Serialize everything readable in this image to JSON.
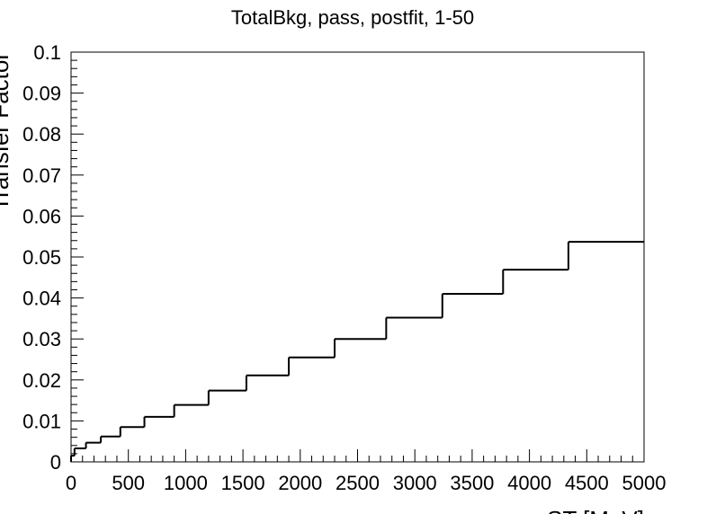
{
  "chart_data": {
    "type": "line",
    "style": "step-histogram",
    "title": "TotalBkg, pass, postfit, 1-50",
    "xlabel": "ST [MeV]",
    "ylabel": "Transfer Factor",
    "xlim": [
      0,
      5000
    ],
    "ylim": [
      0,
      0.1
    ],
    "grid": false,
    "line_color": "#000000",
    "x_ticks": [
      0,
      500,
      1000,
      1500,
      2000,
      2500,
      3000,
      3500,
      4000,
      4500,
      5000
    ],
    "x_tick_labels": [
      "0",
      "500",
      "1000",
      "1500",
      "2000",
      "2500",
      "3000",
      "3500",
      "4000",
      "4500",
      "5000"
    ],
    "y_ticks": [
      0,
      0.01,
      0.02,
      0.03,
      0.04,
      0.05,
      0.06,
      0.07,
      0.08,
      0.09,
      0.1
    ],
    "y_tick_labels": [
      "0",
      "0.01",
      "0.02",
      "0.03",
      "0.04",
      "0.05",
      "0.06",
      "0.07",
      "0.08",
      "0.09",
      "0.1"
    ],
    "bin_edges": [
      0,
      30,
      130,
      260,
      430,
      640,
      900,
      1200,
      1530,
      1900,
      2300,
      2750,
      3240,
      3770,
      4340,
      5000
    ],
    "values": [
      0.0015,
      0.0033,
      0.0047,
      0.0062,
      0.0085,
      0.011,
      0.0139,
      0.0174,
      0.0211,
      0.0255,
      0.03,
      0.0352,
      0.041,
      0.0469,
      0.0537
    ]
  }
}
